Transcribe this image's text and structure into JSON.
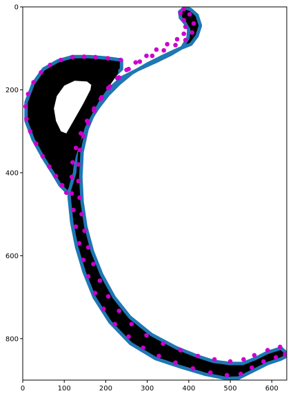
{
  "chart_data": {
    "type": "scatter",
    "title": "",
    "xlabel": "",
    "ylabel": "",
    "xlim": [
      0,
      636
    ],
    "ylim": [
      900,
      0
    ],
    "y_inverted": true,
    "grid": false,
    "legend": "none",
    "xticks": [
      "0",
      "100",
      "200",
      "300",
      "400",
      "500",
      "600"
    ],
    "yticks": [
      "0",
      "200",
      "400",
      "600",
      "800"
    ],
    "colors": {
      "track_fill": "#000000",
      "track_outline": "#1f77b4",
      "points": "#cc00cc",
      "hole": "#ffffff"
    },
    "track_outline": {
      "outer": [
        [
          390,
          2
        ],
        [
          404,
          6
        ],
        [
          420,
          20
        ],
        [
          428,
          45
        ],
        [
          420,
          70
        ],
        [
          405,
          90
        ],
        [
          375,
          102
        ],
        [
          340,
          118
        ],
        [
          300,
          138
        ],
        [
          262,
          160
        ],
        [
          232,
          185
        ],
        [
          205,
          212
        ],
        [
          180,
          245
        ],
        [
          155,
          285
        ],
        [
          132,
          330
        ],
        [
          118,
          370
        ],
        [
          112,
          410
        ],
        [
          112,
          460
        ],
        [
          118,
          520
        ],
        [
          130,
          580
        ],
        [
          148,
          640
        ],
        [
          172,
          700
        ],
        [
          210,
          760
        ],
        [
          260,
          812
        ],
        [
          320,
          848
        ],
        [
          380,
          868
        ],
        [
          440,
          886
        ],
        [
          490,
          896
        ],
        [
          520,
          895
        ],
        [
          550,
          880
        ],
        [
          590,
          860
        ],
        [
          620,
          850
        ],
        [
          636,
          842
        ]
      ],
      "inner": [
        [
          636,
          835
        ],
        [
          622,
          823
        ],
        [
          590,
          833
        ],
        [
          560,
          848
        ],
        [
          530,
          860
        ],
        [
          500,
          860
        ],
        [
          460,
          855
        ],
        [
          420,
          842
        ],
        [
          370,
          822
        ],
        [
          310,
          790
        ],
        [
          258,
          748
        ],
        [
          220,
          700
        ],
        [
          190,
          645
        ],
        [
          168,
          590
        ],
        [
          152,
          530
        ],
        [
          143,
          470
        ],
        [
          140,
          410
        ],
        [
          143,
          350
        ],
        [
          155,
          295
        ],
        [
          178,
          240
        ],
        [
          206,
          200
        ],
        [
          240,
          170
        ],
        [
          280,
          150
        ],
        [
          320,
          132
        ],
        [
          355,
          115
        ],
        [
          384,
          98
        ],
        [
          398,
          75
        ],
        [
          400,
          55
        ],
        [
          390,
          38
        ],
        [
          380,
          26
        ],
        [
          378,
          12
        ]
      ],
      "left_lobe": [
        [
          238,
          128
        ],
        [
          200,
          123
        ],
        [
          160,
          120
        ],
        [
          120,
          120
        ],
        [
          85,
          130
        ],
        [
          50,
          150
        ],
        [
          25,
          185
        ],
        [
          8,
          230
        ],
        [
          8,
          275
        ],
        [
          25,
          320
        ],
        [
          50,
          365
        ],
        [
          72,
          400
        ],
        [
          90,
          430
        ],
        [
          110,
          450
        ],
        [
          125,
          400
        ],
        [
          130,
          340
        ],
        [
          150,
          280
        ],
        [
          175,
          230
        ],
        [
          205,
          180
        ],
        [
          238,
          150
        ]
      ],
      "hole": [
        [
          155,
          180
        ],
        [
          125,
          178
        ],
        [
          100,
          190
        ],
        [
          82,
          215
        ],
        [
          75,
          245
        ],
        [
          80,
          275
        ],
        [
          92,
          300
        ],
        [
          105,
          305
        ],
        [
          125,
          270
        ],
        [
          145,
          235
        ],
        [
          163,
          200
        ],
        [
          165,
          188
        ]
      ]
    },
    "series": [
      {
        "points": [
          [
            388,
            5
          ],
          [
            402,
            18
          ],
          [
            412,
            40
          ],
          [
            408,
            62
          ],
          [
            392,
            80
          ],
          [
            368,
            92
          ],
          [
            340,
            105
          ],
          [
            312,
            118
          ],
          [
            282,
            132
          ],
          [
            255,
            150
          ],
          [
            232,
            170
          ],
          [
            210,
            192
          ],
          [
            190,
            218
          ],
          [
            172,
            245
          ],
          [
            155,
            275
          ],
          [
            140,
            305
          ],
          [
            128,
            340
          ],
          [
            120,
            375
          ],
          [
            118,
            410
          ],
          [
            118,
            450
          ],
          [
            122,
            490
          ],
          [
            128,
            530
          ],
          [
            136,
            570
          ],
          [
            146,
            610
          ],
          [
            158,
            650
          ],
          [
            174,
            690
          ],
          [
            195,
            728
          ],
          [
            222,
            765
          ],
          [
            255,
            795
          ],
          [
            290,
            822
          ],
          [
            328,
            842
          ],
          [
            368,
            858
          ],
          [
            410,
            872
          ],
          [
            452,
            882
          ],
          [
            492,
            888
          ],
          [
            525,
            885
          ],
          [
            552,
            870
          ],
          [
            580,
            855
          ],
          [
            610,
            845
          ],
          [
            632,
            838
          ]
        ]
      },
      {
        "points": [
          [
            380,
            15
          ],
          [
            388,
            32
          ],
          [
            392,
            48
          ],
          [
            388,
            65
          ],
          [
            372,
            78
          ],
          [
            348,
            90
          ],
          [
            322,
            103
          ],
          [
            298,
            118
          ],
          [
            272,
            134
          ],
          [
            250,
            152
          ],
          [
            228,
            172
          ],
          [
            206,
            196
          ],
          [
            188,
            222
          ],
          [
            172,
            250
          ],
          [
            158,
            280
          ],
          [
            146,
            312
          ],
          [
            138,
            345
          ],
          [
            134,
            380
          ],
          [
            134,
            420
          ],
          [
            137,
            460
          ],
          [
            142,
            500
          ],
          [
            149,
            540
          ],
          [
            158,
            580
          ],
          [
            170,
            620
          ],
          [
            186,
            660
          ],
          [
            206,
            698
          ],
          [
            232,
            733
          ],
          [
            262,
            765
          ],
          [
            298,
            792
          ],
          [
            338,
            812
          ],
          [
            380,
            828
          ],
          [
            422,
            842
          ],
          [
            462,
            850
          ],
          [
            500,
            855
          ],
          [
            532,
            850
          ],
          [
            558,
            840
          ],
          [
            590,
            828
          ],
          [
            620,
            820
          ]
        ]
      },
      {
        "points": [
          [
            236,
            128
          ],
          [
            205,
            124
          ],
          [
            175,
            121
          ],
          [
            148,
            120
          ],
          [
            120,
            121
          ],
          [
            92,
            128
          ],
          [
            66,
            140
          ],
          [
            44,
            158
          ],
          [
            26,
            182
          ],
          [
            13,
            210
          ],
          [
            7,
            240
          ],
          [
            9,
            270
          ],
          [
            18,
            300
          ],
          [
            32,
            330
          ],
          [
            48,
            360
          ],
          [
            64,
            385
          ],
          [
            80,
            408
          ],
          [
            95,
            430
          ],
          [
            105,
            448
          ]
        ]
      }
    ]
  }
}
